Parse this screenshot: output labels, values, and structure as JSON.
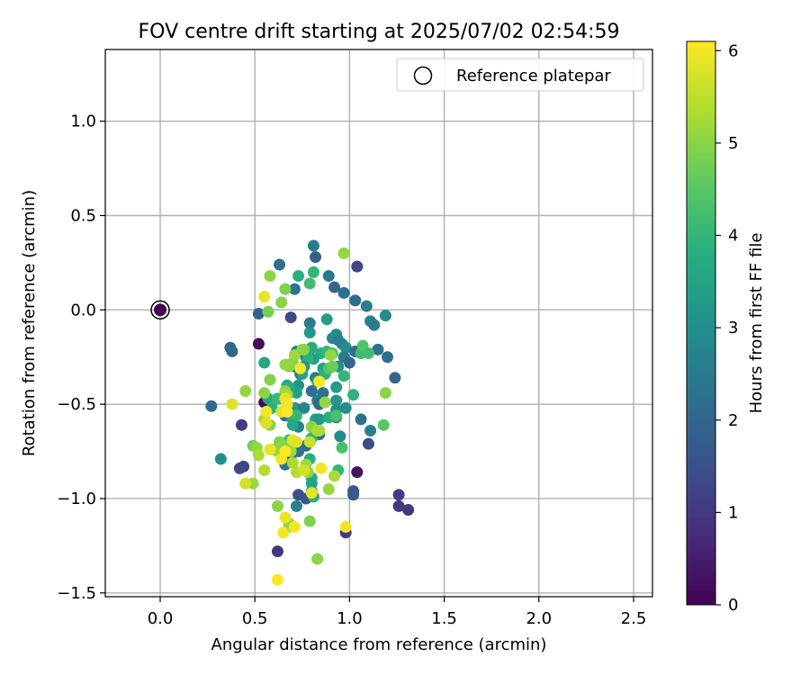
{
  "chart_data": {
    "type": "scatter",
    "title": "FOV centre drift starting at 2025/07/02 02:54:59",
    "xlabel": "Angular distance from reference (arcmin)",
    "ylabel": "Rotation from reference (arcmin)",
    "xlim": [
      -0.29,
      2.6
    ],
    "ylim": [
      -1.52,
      1.38
    ],
    "xticks": [
      0.0,
      0.5,
      1.0,
      1.5,
      2.0,
      2.5
    ],
    "xtick_labels": [
      "0.0",
      "0.5",
      "1.0",
      "1.5",
      "2.0",
      "2.5"
    ],
    "yticks": [
      -1.5,
      -1.0,
      -0.5,
      0.0,
      0.5,
      1.0
    ],
    "ytick_labels": [
      "−1.5",
      "−1.0",
      "−0.5",
      "0.0",
      "0.5",
      "1.0"
    ],
    "grid": true,
    "legend": {
      "placement": "top-right",
      "entries": [
        "Reference platepar"
      ]
    },
    "reference_point": {
      "x": 0.0,
      "y": 0.0,
      "hours": 0
    },
    "colorbar": {
      "label": "Hours from first FF file",
      "min": 0,
      "max": 6.1,
      "ticks": [
        0,
        1,
        2,
        3,
        4,
        5,
        6
      ],
      "tick_labels": [
        "0",
        "1",
        "2",
        "3",
        "4",
        "5",
        "6"
      ],
      "colormap": "viridis"
    },
    "points": [
      {
        "x": 0.52,
        "y": -0.18,
        "h": 0.2
      },
      {
        "x": 0.55,
        "y": -0.49,
        "h": 0.1
      },
      {
        "x": 1.04,
        "y": -0.86,
        "h": 0.3
      },
      {
        "x": 0.62,
        "y": -1.28,
        "h": 0.9
      },
      {
        "x": 0.98,
        "y": -1.18,
        "h": 1.1
      },
      {
        "x": 1.31,
        "y": -1.06,
        "h": 1.0
      },
      {
        "x": 1.26,
        "y": -0.98,
        "h": 1.1
      },
      {
        "x": 1.26,
        "y": -1.04,
        "h": 1.0
      },
      {
        "x": 0.43,
        "y": -0.61,
        "h": 1.1
      },
      {
        "x": 0.44,
        "y": -0.83,
        "h": 1.2
      },
      {
        "x": 0.42,
        "y": -0.84,
        "h": 1.3
      },
      {
        "x": 1.1,
        "y": -0.71,
        "h": 1.4
      },
      {
        "x": 1.04,
        "y": 0.23,
        "h": 1.3
      },
      {
        "x": 1.02,
        "y": -0.96,
        "h": 1.6
      },
      {
        "x": 1.02,
        "y": -0.98,
        "h": 1.7
      },
      {
        "x": 0.73,
        "y": -0.98,
        "h": 1.5
      },
      {
        "x": 0.77,
        "y": -1.0,
        "h": 1.6
      },
      {
        "x": 0.69,
        "y": -0.04,
        "h": 1.3
      },
      {
        "x": 0.52,
        "y": -0.02,
        "h": 1.8
      },
      {
        "x": 0.37,
        "y": -0.2,
        "h": 1.9
      },
      {
        "x": 0.27,
        "y": -0.51,
        "h": 2.1
      },
      {
        "x": 0.38,
        "y": -0.22,
        "h": 2.0
      },
      {
        "x": 0.63,
        "y": 0.24,
        "h": 2.2
      },
      {
        "x": 0.71,
        "y": 0.11,
        "h": 2.3
      },
      {
        "x": 0.82,
        "y": 0.28,
        "h": 1.8
      },
      {
        "x": 0.81,
        "y": 0.34,
        "h": 2.6
      },
      {
        "x": 0.89,
        "y": 0.18,
        "h": 2.4
      },
      {
        "x": 0.92,
        "y": 0.12,
        "h": 2.0
      },
      {
        "x": 0.97,
        "y": 0.09,
        "h": 2.2
      },
      {
        "x": 1.03,
        "y": 0.05,
        "h": 2.1
      },
      {
        "x": 1.09,
        "y": 0.02,
        "h": 2.5
      },
      {
        "x": 1.11,
        "y": -0.06,
        "h": 2.7
      },
      {
        "x": 1.13,
        "y": -0.08,
        "h": 2.5
      },
      {
        "x": 1.19,
        "y": -0.03,
        "h": 2.9
      },
      {
        "x": 1.15,
        "y": -0.21,
        "h": 2.3
      },
      {
        "x": 1.2,
        "y": -0.25,
        "h": 2.2
      },
      {
        "x": 1.24,
        "y": -0.36,
        "h": 2.0
      },
      {
        "x": 1.06,
        "y": -0.58,
        "h": 2.3
      },
      {
        "x": 1.11,
        "y": -0.64,
        "h": 2.6
      },
      {
        "x": 0.32,
        "y": -0.79,
        "h": 3.0
      },
      {
        "x": 0.79,
        "y": -0.07,
        "h": 2.5
      },
      {
        "x": 0.79,
        "y": -0.12,
        "h": 3.2
      },
      {
        "x": 0.88,
        "y": -0.05,
        "h": 3.4
      },
      {
        "x": 0.72,
        "y": -0.22,
        "h": 2.7
      },
      {
        "x": 0.77,
        "y": -0.25,
        "h": 2.3
      },
      {
        "x": 0.71,
        "y": -0.3,
        "h": 2.4
      },
      {
        "x": 0.74,
        "y": -0.34,
        "h": 2.0
      },
      {
        "x": 0.82,
        "y": -0.36,
        "h": 2.6
      },
      {
        "x": 0.8,
        "y": -0.43,
        "h": 2.2
      },
      {
        "x": 0.86,
        "y": -0.44,
        "h": 2.3
      },
      {
        "x": 0.83,
        "y": -0.48,
        "h": 2.5
      },
      {
        "x": 0.84,
        "y": -0.5,
        "h": 2.1
      },
      {
        "x": 0.76,
        "y": -0.52,
        "h": 2.8
      },
      {
        "x": 0.71,
        "y": -0.52,
        "h": 2.4
      },
      {
        "x": 0.68,
        "y": -0.55,
        "h": 2.6
      },
      {
        "x": 0.66,
        "y": -0.56,
        "h": 2.3
      },
      {
        "x": 0.73,
        "y": -0.62,
        "h": 2.7
      },
      {
        "x": 0.8,
        "y": -0.62,
        "h": 2.5
      },
      {
        "x": 0.84,
        "y": -0.66,
        "h": 2.2
      },
      {
        "x": 0.8,
        "y": -0.68,
        "h": 2.6
      },
      {
        "x": 0.79,
        "y": -0.7,
        "h": 2.4
      },
      {
        "x": 0.77,
        "y": -0.72,
        "h": 2.1
      },
      {
        "x": 0.73,
        "y": -0.75,
        "h": 2.3
      },
      {
        "x": 0.67,
        "y": -0.8,
        "h": 2.5
      },
      {
        "x": 0.66,
        "y": -0.82,
        "h": 2.4
      },
      {
        "x": 0.69,
        "y": -0.79,
        "h": 2.0
      },
      {
        "x": 0.72,
        "y": -1.04,
        "h": 2.7
      },
      {
        "x": 0.91,
        "y": -0.15,
        "h": 2.8
      },
      {
        "x": 0.93,
        "y": -0.13,
        "h": 3.0
      },
      {
        "x": 0.94,
        "y": -0.16,
        "h": 2.6
      },
      {
        "x": 0.96,
        "y": -0.18,
        "h": 2.7
      },
      {
        "x": 0.98,
        "y": -0.2,
        "h": 2.9
      },
      {
        "x": 0.97,
        "y": -0.25,
        "h": 2.5
      },
      {
        "x": 1.0,
        "y": -0.28,
        "h": 2.0
      },
      {
        "x": 1.03,
        "y": -0.22,
        "h": 2.2
      },
      {
        "x": 0.94,
        "y": -0.3,
        "h": 3.1
      },
      {
        "x": 0.93,
        "y": -0.41,
        "h": 3.3
      },
      {
        "x": 0.93,
        "y": -0.48,
        "h": 3.2
      },
      {
        "x": 0.93,
        "y": -0.53,
        "h": 3.0
      },
      {
        "x": 0.93,
        "y": -0.57,
        "h": 2.8
      },
      {
        "x": 0.98,
        "y": -0.52,
        "h": 3.0
      },
      {
        "x": 0.95,
        "y": -0.67,
        "h": 2.9
      },
      {
        "x": 0.73,
        "y": -0.4,
        "h": 3.1
      },
      {
        "x": 0.72,
        "y": -0.44,
        "h": 3.5
      },
      {
        "x": 0.7,
        "y": -0.52,
        "h": 3.3
      },
      {
        "x": 0.7,
        "y": -0.58,
        "h": 3.7
      },
      {
        "x": 0.82,
        "y": -0.58,
        "h": 3.6
      },
      {
        "x": 0.84,
        "y": -0.58,
        "h": 3.2
      },
      {
        "x": 0.83,
        "y": -0.38,
        "h": 3.4
      },
      {
        "x": 0.55,
        "y": -0.28,
        "h": 3.6
      },
      {
        "x": 0.85,
        "y": -0.23,
        "h": 3.8
      },
      {
        "x": 0.86,
        "y": -0.31,
        "h": 3.5
      },
      {
        "x": 0.81,
        "y": -0.26,
        "h": 3.4
      },
      {
        "x": 0.8,
        "y": -0.2,
        "h": 3.7
      },
      {
        "x": 0.78,
        "y": -0.26,
        "h": 3.9
      },
      {
        "x": 0.76,
        "y": -0.3,
        "h": 3.2
      },
      {
        "x": 0.88,
        "y": -0.22,
        "h": 4.1
      },
      {
        "x": 0.91,
        "y": -0.23,
        "h": 4.3
      },
      {
        "x": 0.87,
        "y": -0.34,
        "h": 3.9
      },
      {
        "x": 0.73,
        "y": 0.18,
        "h": 3.8
      },
      {
        "x": 0.81,
        "y": 0.2,
        "h": 4.0
      },
      {
        "x": 0.79,
        "y": 0.14,
        "h": 4.2
      },
      {
        "x": 0.67,
        "y": -0.4,
        "h": 3.7
      },
      {
        "x": 0.57,
        "y": -0.47,
        "h": 3.6
      },
      {
        "x": 0.59,
        "y": -0.52,
        "h": 3.9
      },
      {
        "x": 0.62,
        "y": -0.47,
        "h": 4.1
      },
      {
        "x": 0.67,
        "y": -0.44,
        "h": 4.0
      },
      {
        "x": 0.68,
        "y": -0.41,
        "h": 3.8
      },
      {
        "x": 0.72,
        "y": -0.56,
        "h": 4.0
      },
      {
        "x": 0.7,
        "y": -0.61,
        "h": 3.6
      },
      {
        "x": 0.68,
        "y": -0.69,
        "h": 4.2
      },
      {
        "x": 0.8,
        "y": -0.68,
        "h": 3.9
      },
      {
        "x": 0.79,
        "y": -0.79,
        "h": 3.8
      },
      {
        "x": 0.8,
        "y": -0.89,
        "h": 3.7
      },
      {
        "x": 0.8,
        "y": -0.92,
        "h": 3.5
      },
      {
        "x": 0.8,
        "y": -0.96,
        "h": 3.6
      },
      {
        "x": 0.81,
        "y": -0.99,
        "h": 3.8
      },
      {
        "x": 0.94,
        "y": -0.85,
        "h": 4.0
      },
      {
        "x": 0.89,
        "y": -0.57,
        "h": 3.8
      },
      {
        "x": 0.93,
        "y": -0.56,
        "h": 4.3
      },
      {
        "x": 1.02,
        "y": -0.45,
        "h": 3.9
      },
      {
        "x": 1.06,
        "y": -0.23,
        "h": 4.1
      },
      {
        "x": 1.07,
        "y": -0.19,
        "h": 4.4
      },
      {
        "x": 1.1,
        "y": -0.23,
        "h": 4.2
      },
      {
        "x": 0.96,
        "y": -0.73,
        "h": 4.3
      },
      {
        "x": 1.18,
        "y": -0.61,
        "h": 4.5
      },
      {
        "x": 0.97,
        "y": -0.35,
        "h": 4.0
      },
      {
        "x": 0.75,
        "y": -0.34,
        "h": 3.5
      },
      {
        "x": 0.89,
        "y": -0.31,
        "h": 4.4
      },
      {
        "x": 0.76,
        "y": -0.21,
        "h": 4.8
      },
      {
        "x": 0.7,
        "y": -0.28,
        "h": 4.9
      },
      {
        "x": 0.68,
        "y": -0.3,
        "h": 5.0
      },
      {
        "x": 0.66,
        "y": -0.29,
        "h": 5.1
      },
      {
        "x": 0.71,
        "y": -0.24,
        "h": 5.2
      },
      {
        "x": 0.75,
        "y": -0.21,
        "h": 5.0
      },
      {
        "x": 0.9,
        "y": -0.24,
        "h": 5.1
      },
      {
        "x": 0.91,
        "y": -0.3,
        "h": 4.7
      },
      {
        "x": 0.97,
        "y": 0.3,
        "h": 5.1
      },
      {
        "x": 0.58,
        "y": 0.18,
        "h": 5.0
      },
      {
        "x": 0.66,
        "y": 0.11,
        "h": 4.9
      },
      {
        "x": 0.64,
        "y": 0.04,
        "h": 5.0
      },
      {
        "x": 0.57,
        "y": -0.01,
        "h": 4.8
      },
      {
        "x": 0.55,
        "y": -0.44,
        "h": 5.0
      },
      {
        "x": 0.45,
        "y": -0.43,
        "h": 5.1
      },
      {
        "x": 0.58,
        "y": -0.37,
        "h": 4.9
      },
      {
        "x": 0.66,
        "y": -0.43,
        "h": 5.1
      },
      {
        "x": 0.67,
        "y": -0.45,
        "h": 5.3
      },
      {
        "x": 0.55,
        "y": -0.58,
        "h": 5.2
      },
      {
        "x": 0.58,
        "y": -0.61,
        "h": 5.0
      },
      {
        "x": 0.49,
        "y": -0.72,
        "h": 4.8
      },
      {
        "x": 0.51,
        "y": -0.73,
        "h": 5.1
      },
      {
        "x": 0.52,
        "y": -0.77,
        "h": 5.3
      },
      {
        "x": 0.55,
        "y": -0.85,
        "h": 5.4
      },
      {
        "x": 0.59,
        "y": -0.74,
        "h": 5.2
      },
      {
        "x": 0.62,
        "y": -0.75,
        "h": 5.1
      },
      {
        "x": 0.63,
        "y": -0.7,
        "h": 4.9
      },
      {
        "x": 0.65,
        "y": -0.72,
        "h": 5.0
      },
      {
        "x": 0.69,
        "y": -0.75,
        "h": 5.2
      },
      {
        "x": 0.7,
        "y": -0.81,
        "h": 5.3
      },
      {
        "x": 0.72,
        "y": -0.86,
        "h": 5.4
      },
      {
        "x": 0.77,
        "y": -0.82,
        "h": 5.2
      },
      {
        "x": 0.78,
        "y": -0.86,
        "h": 5.1
      },
      {
        "x": 0.8,
        "y": -0.62,
        "h": 5.0
      },
      {
        "x": 0.83,
        "y": -0.64,
        "h": 5.4
      },
      {
        "x": 0.87,
        "y": -0.49,
        "h": 5.1
      },
      {
        "x": 0.84,
        "y": -0.64,
        "h": 5.3
      },
      {
        "x": 0.89,
        "y": -0.95,
        "h": 5.1
      },
      {
        "x": 0.92,
        "y": -0.88,
        "h": 5.3
      },
      {
        "x": 0.62,
        "y": -1.04,
        "h": 5.0
      },
      {
        "x": 0.68,
        "y": -1.13,
        "h": 5.2
      },
      {
        "x": 0.68,
        "y": -1.15,
        "h": 5.1
      },
      {
        "x": 0.79,
        "y": -1.12,
        "h": 4.9
      },
      {
        "x": 0.83,
        "y": -1.32,
        "h": 5.0
      },
      {
        "x": 1.19,
        "y": -0.44,
        "h": 5.0
      },
      {
        "x": 0.49,
        "y": -0.92,
        "h": 5.2
      },
      {
        "x": 0.45,
        "y": -0.92,
        "h": 5.7
      },
      {
        "x": 0.38,
        "y": -0.5,
        "h": 5.8
      },
      {
        "x": 0.55,
        "y": 0.07,
        "h": 5.9
      },
      {
        "x": 0.56,
        "y": -0.54,
        "h": 6.0
      },
      {
        "x": 0.56,
        "y": -0.6,
        "h": 5.8
      },
      {
        "x": 0.58,
        "y": -0.74,
        "h": 5.9
      },
      {
        "x": 0.64,
        "y": -0.79,
        "h": 6.0
      },
      {
        "x": 0.66,
        "y": -0.75,
        "h": 6.1
      },
      {
        "x": 0.66,
        "y": -0.47,
        "h": 5.9
      },
      {
        "x": 0.67,
        "y": -0.5,
        "h": 6.0
      },
      {
        "x": 0.64,
        "y": -0.54,
        "h": 5.8
      },
      {
        "x": 0.67,
        "y": -0.54,
        "h": 6.1
      },
      {
        "x": 0.7,
        "y": -0.69,
        "h": 5.9
      },
      {
        "x": 0.72,
        "y": -0.7,
        "h": 5.8
      },
      {
        "x": 0.74,
        "y": -0.31,
        "h": 6.0
      },
      {
        "x": 0.84,
        "y": -0.38,
        "h": 6.1
      },
      {
        "x": 0.85,
        "y": -0.84,
        "h": 6.0
      },
      {
        "x": 0.8,
        "y": -0.97,
        "h": 5.9
      },
      {
        "x": 0.65,
        "y": -1.18,
        "h": 6.0
      },
      {
        "x": 0.66,
        "y": -1.1,
        "h": 5.9
      },
      {
        "x": 0.71,
        "y": -1.15,
        "h": 6.0
      },
      {
        "x": 0.62,
        "y": -1.43,
        "h": 6.1
      },
      {
        "x": 0.98,
        "y": -1.15,
        "h": 6.0
      },
      {
        "x": 0.76,
        "y": -0.85,
        "h": 5.7
      },
      {
        "x": 0.79,
        "y": -0.7,
        "h": 5.6
      }
    ]
  }
}
